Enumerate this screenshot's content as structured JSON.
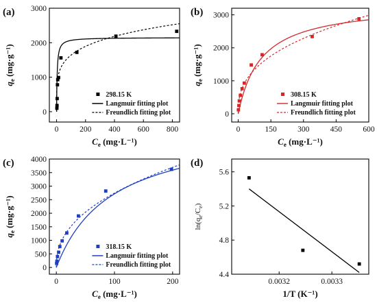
{
  "chart_data": [
    {
      "panel": "(a)",
      "type": "scatter",
      "xlabel_main": "C",
      "xlabel_sub": "e",
      "xlabel_unit": " (mg·L⁻¹)",
      "ylabel_main": "q",
      "ylabel_sub": "e",
      "ylabel_unit": " (mg·g⁻¹)",
      "xlim": [
        -50,
        850
      ],
      "ylim": [
        -300,
        3000
      ],
      "xticks": [
        0,
        200,
        400,
        600,
        800
      ],
      "yticks": [
        0,
        1000,
        2000,
        3000
      ],
      "color": "#000000",
      "points": [
        [
          2,
          100
        ],
        [
          3,
          180
        ],
        [
          4,
          380
        ],
        [
          6,
          780
        ],
        [
          8,
          930
        ],
        [
          14,
          990
        ],
        [
          30,
          1560
        ],
        [
          140,
          1720
        ],
        [
          410,
          2190
        ],
        [
          830,
          2330
        ]
      ],
      "fit_langmuir": {
        "qmax": 2150,
        "KL": 0.25
      },
      "fit_freundlich": {
        "KF": 635,
        "n": 4.85
      },
      "legend_points": "298.15 K",
      "legend_langmuir": "Langmuir fitting plot",
      "legend_freundlich": "Freundlich fitting plot",
      "marker": "square"
    },
    {
      "panel": "(b)",
      "type": "scatter",
      "xlabel_main": "C",
      "xlabel_sub": "e",
      "xlabel_unit": " (mg·L⁻¹)",
      "ylabel_main": "q",
      "ylabel_sub": "e",
      "ylabel_unit": " (mg·g⁻¹)",
      "xlim": [
        -30,
        600
      ],
      "ylim": [
        -250,
        3200
      ],
      "xticks": [
        0,
        150,
        300,
        450,
        600
      ],
      "yticks": [
        0,
        1000,
        2000,
        3000
      ],
      "color": "#d62728",
      "points": [
        [
          1,
          120
        ],
        [
          3,
          250
        ],
        [
          5,
          390
        ],
        [
          10,
          560
        ],
        [
          18,
          760
        ],
        [
          28,
          930
        ],
        [
          60,
          1480
        ],
        [
          110,
          1790
        ],
        [
          340,
          2340
        ],
        [
          555,
          2880
        ]
      ],
      "fit_langmuir": {
        "qmax": 3350,
        "KL": 0.0095
      },
      "fit_freundlich": {
        "KF": 255,
        "n": 2.6
      },
      "legend_points": "308.15 K",
      "legend_langmuir": "Langmuir fitting plot",
      "legend_freundlich": "Freundlich fitting plot",
      "marker": "square"
    },
    {
      "panel": "(c)",
      "type": "scatter",
      "xlabel_main": "C",
      "xlabel_sub": "e",
      "xlabel_unit": " (mg·L⁻¹)",
      "ylabel_main": "q",
      "ylabel_sub": "e",
      "ylabel_unit": " (mg·g⁻¹)",
      "xlim": [
        -12,
        212
      ],
      "ylim": [
        -250,
        4000
      ],
      "xticks": [
        0,
        100,
        200
      ],
      "yticks": [
        0,
        500,
        1000,
        1500,
        2000,
        2500,
        3000,
        3500,
        4000
      ],
      "color": "#1f3fbf",
      "points": [
        [
          0.5,
          150
        ],
        [
          1,
          230
        ],
        [
          2,
          400
        ],
        [
          4,
          560
        ],
        [
          6,
          770
        ],
        [
          10,
          980
        ],
        [
          18,
          1270
        ],
        [
          38,
          1900
        ],
        [
          85,
          2820
        ],
        [
          198,
          3620
        ]
      ],
      "fit_langmuir": {
        "qmax": 5300,
        "KL": 0.0105
      },
      "fit_freundlich": {
        "KF": 380,
        "n": 2.33
      },
      "legend_points": "318.15 K",
      "legend_langmuir": "Langmuir fitting plot",
      "legend_freundlich": "Freundlich fitting plot",
      "marker": "square"
    },
    {
      "panel": "(d)",
      "type": "scatter",
      "xlabel_main": "1/T (K⁻¹)",
      "ylabel_main": "ln(q",
      "ylabel_sub": "e",
      "ylabel_mid": "/C",
      "ylabel_sub2": "e",
      "ylabel_end": ")",
      "xlim": [
        0.00311,
        0.00337
      ],
      "ylim": [
        4.4,
        5.75
      ],
      "xticks": [
        0.0032,
        0.0033
      ],
      "xtick_labels": [
        "0.0032",
        "0.0033"
      ],
      "yticks": [
        4.4,
        4.8,
        5.2,
        5.6
      ],
      "ytick_labels": [
        "4.4",
        "4.8",
        "5.2",
        "5.6"
      ],
      "color": "#000000",
      "points": [
        [
          0.003143,
          5.53
        ],
        [
          0.003245,
          4.68
        ],
        [
          0.003352,
          4.52
        ]
      ],
      "fit_line": [
        [
          0.003143,
          5.4
        ],
        [
          0.003352,
          4.42
        ]
      ],
      "marker": "square"
    }
  ]
}
